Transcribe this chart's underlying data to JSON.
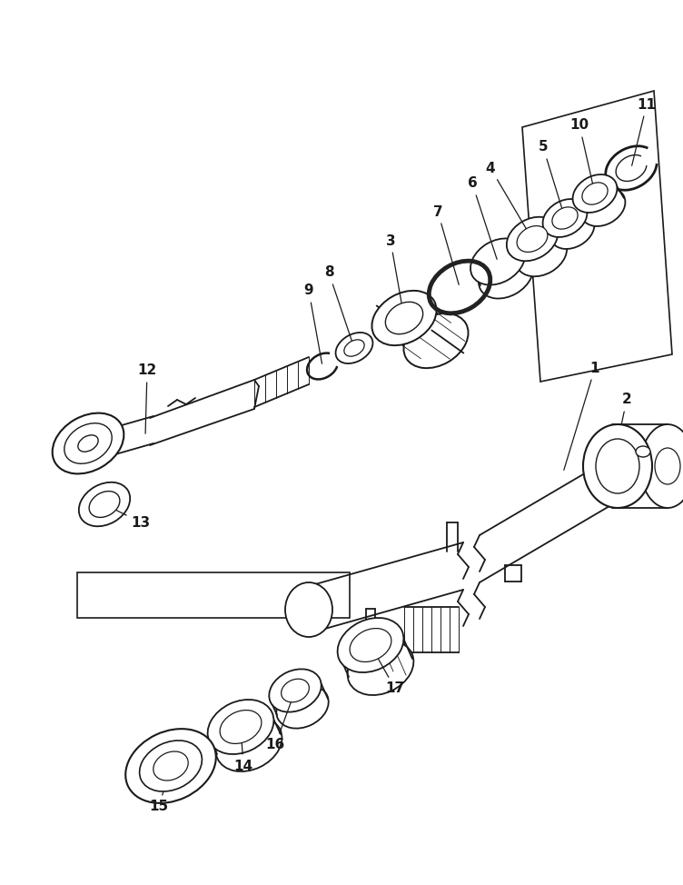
{
  "bg_color": "#ffffff",
  "line_color": "#1a1a1a",
  "fig_width": 7.52,
  "fig_height": 9.74,
  "dpi": 100
}
